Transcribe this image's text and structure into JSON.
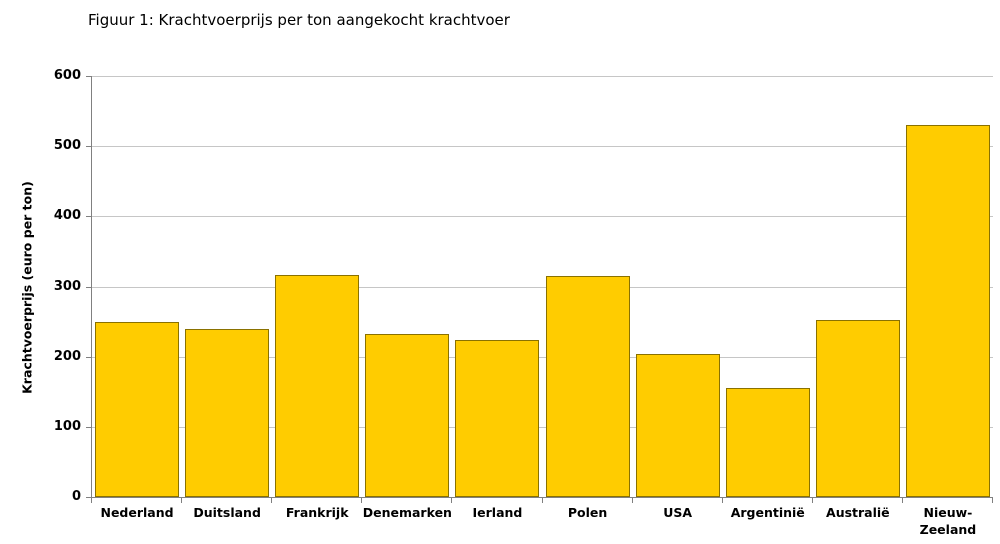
{
  "title": "Figuur 1: Krachtvoerprijs per ton aangekocht krachtvoer",
  "chart_data": {
    "type": "bar",
    "title": "Figuur 1: Krachtvoerprijs per ton aangekocht krachtvoer",
    "categories": [
      "Nederland",
      "Duitsland",
      "Frankrijk",
      "Denemarken",
      "Ierland",
      "Polen",
      "USA",
      "Argentinië",
      "Australië",
      "Nieuw-Zeeland"
    ],
    "values": [
      249,
      240,
      317,
      233,
      224,
      315,
      204,
      155,
      252,
      530
    ],
    "xlabel": "",
    "ylabel": "Krachtvoerprijs (euro per ton)",
    "ylim": [
      0,
      600
    ],
    "ytick_step": 100,
    "yticks": [
      0,
      100,
      200,
      300,
      400,
      500,
      600
    ],
    "grid": true,
    "legend": false,
    "colors": {
      "bar_fill": "#FFCC00",
      "bar_border": "#8A7100",
      "gridline": "#C6C6C6",
      "axis": "#808080",
      "text": "#000000",
      "background": "#FFFFFF"
    }
  }
}
